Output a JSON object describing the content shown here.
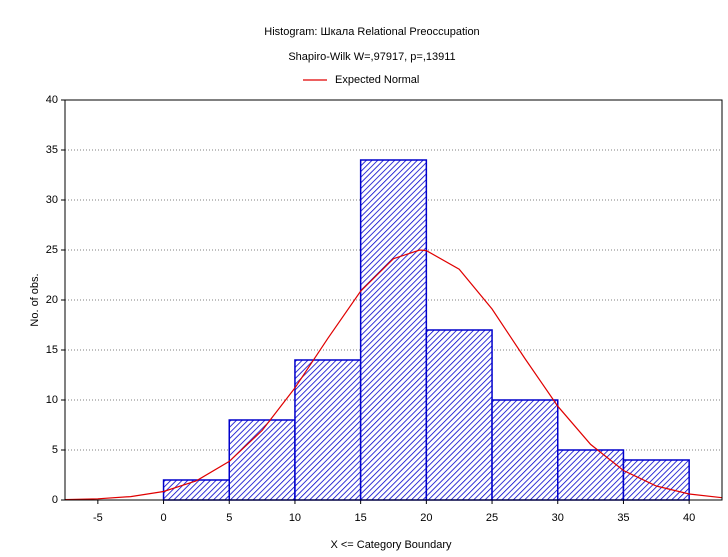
{
  "chart_data": {
    "type": "histogram",
    "title": "Histogram: Шкала Relational Preoccupation",
    "subtitle": "Shapiro-Wilk W=,97917, p=,13911",
    "xlabel": "X <= Category Boundary",
    "ylabel": "No. of obs.",
    "bins": [
      0,
      5,
      10,
      15,
      20,
      25,
      30,
      35,
      40
    ],
    "counts": [
      2,
      8,
      14,
      34,
      17,
      10,
      5,
      4
    ],
    "color": "#0000cc",
    "xlim": [
      -7.5,
      42.5
    ],
    "xticks": [
      -5,
      0,
      5,
      10,
      15,
      20,
      25,
      30,
      35,
      40
    ],
    "ylim": [
      0,
      40
    ],
    "yticks": [
      0,
      5,
      10,
      15,
      20,
      25,
      30,
      35,
      40
    ],
    "grid": true,
    "series": [
      {
        "name": "Expected Normal",
        "color": "#e00000",
        "x": [
          -7.5,
          -5,
          -2.5,
          0,
          2.5,
          5,
          7.5,
          10,
          12.5,
          15,
          17.5,
          19.5,
          20,
          22.5,
          25,
          27.5,
          30,
          32.5,
          35,
          37.5,
          40,
          42.5
        ],
        "values": [
          0.04,
          0.12,
          0.34,
          0.85,
          1.92,
          3.86,
          6.95,
          11.21,
          16.16,
          20.88,
          24.13,
          25,
          24.94,
          23.08,
          19.1,
          14.15,
          9.38,
          5.56,
          2.95,
          1.4,
          0.6,
          0.23
        ]
      }
    ]
  }
}
